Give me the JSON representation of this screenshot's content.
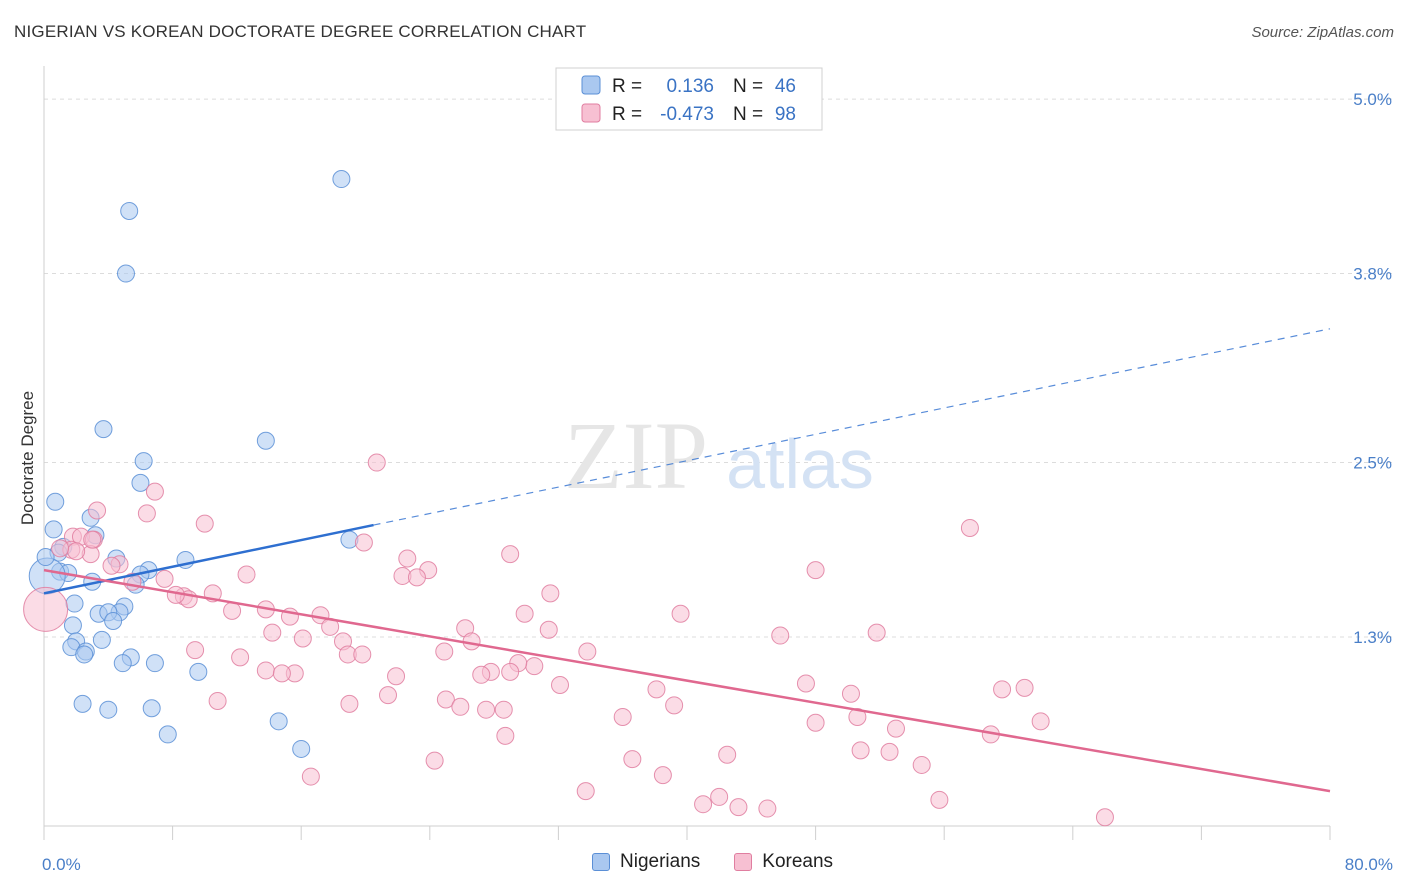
{
  "title": "NIGERIAN VS KOREAN DOCTORATE DEGREE CORRELATION CHART",
  "source": "Source: ZipAtlas.com",
  "watermark": {
    "zip": "ZIP",
    "atlas": "atlas"
  },
  "colors": {
    "nigerians_fill": "#aac8f0",
    "nigerians_stroke": "#5b8fd6",
    "nigerians_line": "#2e6fd0",
    "koreans_fill": "#f7c0d2",
    "koreans_stroke": "#e07ea0",
    "koreans_line": "#e0688f",
    "tick": "#4a7fc8",
    "grid": "#dcdcdc"
  },
  "legend": {
    "rows": [
      {
        "r_label": "R =",
        "r_value": "0.136",
        "n_label": "N =",
        "n_value": "46"
      },
      {
        "r_label": "R =",
        "r_value": "-0.473",
        "n_label": "N =",
        "n_value": "98"
      }
    ]
  },
  "bottom_legend": [
    "Nigerians",
    "Koreans"
  ],
  "chart_data": {
    "type": "scatter",
    "title": "NIGERIAN VS KOREAN DOCTORATE DEGREE CORRELATION CHART",
    "ylabel": "Doctorate Degree",
    "xlabel": "",
    "xlim": [
      0,
      80
    ],
    "ylim": [
      0,
      5.2
    ],
    "x_tick_labels": [
      "0.0%",
      "80.0%"
    ],
    "y_ticks": [
      1.3,
      2.5,
      3.8,
      5.0
    ],
    "y_tick_labels": [
      "1.3%",
      "2.5%",
      "3.8%",
      "5.0%"
    ],
    "grid": true,
    "legend_position": "top-center",
    "series": [
      {
        "name": "Nigerians",
        "R": 0.136,
        "N": 46,
        "trend": {
          "x0": 0,
          "y0": 1.6,
          "x1": 20.5,
          "y1": 2.07,
          "dashed_to_x": 80,
          "dashed_to_y": 3.42
        },
        "points": [
          [
            18.5,
            4.45
          ],
          [
            5.3,
            4.23
          ],
          [
            5.1,
            3.8
          ],
          [
            3.7,
            2.73
          ],
          [
            13.8,
            2.65
          ],
          [
            6.2,
            2.51
          ],
          [
            6.0,
            2.36
          ],
          [
            0.7,
            2.23
          ],
          [
            0.6,
            2.04
          ],
          [
            2.9,
            2.12
          ],
          [
            3.2,
            2.0
          ],
          [
            19.0,
            1.97
          ],
          [
            1.2,
            1.92
          ],
          [
            0.9,
            1.88
          ],
          [
            4.5,
            1.84
          ],
          [
            8.8,
            1.83
          ],
          [
            1.0,
            1.75
          ],
          [
            1.5,
            1.74
          ],
          [
            6.5,
            1.76
          ],
          [
            6.0,
            1.73
          ],
          [
            3.0,
            1.68
          ],
          [
            5.7,
            1.66
          ],
          [
            0.2,
            1.72
          ],
          [
            1.9,
            1.53
          ],
          [
            5.0,
            1.51
          ],
          [
            4.7,
            1.47
          ],
          [
            3.4,
            1.46
          ],
          [
            4.0,
            1.47
          ],
          [
            4.3,
            1.41
          ],
          [
            1.8,
            1.38
          ],
          [
            3.6,
            1.28
          ],
          [
            2.0,
            1.27
          ],
          [
            1.7,
            1.23
          ],
          [
            2.6,
            1.2
          ],
          [
            2.5,
            1.18
          ],
          [
            5.4,
            1.16
          ],
          [
            4.9,
            1.12
          ],
          [
            6.9,
            1.12
          ],
          [
            9.6,
            1.06
          ],
          [
            2.4,
            0.84
          ],
          [
            4.0,
            0.8
          ],
          [
            6.7,
            0.81
          ],
          [
            14.6,
            0.72
          ],
          [
            7.7,
            0.63
          ],
          [
            16.0,
            0.53
          ],
          [
            0.1,
            1.85
          ]
        ],
        "radii_large": [
          [
            0.2,
            1.72,
            18
          ]
        ]
      },
      {
        "name": "Koreans",
        "R": -0.473,
        "N": 98,
        "trend": {
          "x0": 0,
          "y0": 1.76,
          "x1": 80,
          "y1": 0.24
        },
        "points": [
          [
            20.7,
            2.5
          ],
          [
            6.9,
            2.3
          ],
          [
            3.3,
            2.17
          ],
          [
            6.4,
            2.15
          ],
          [
            10.0,
            2.08
          ],
          [
            57.6,
            2.05
          ],
          [
            1.8,
            1.99
          ],
          [
            2.3,
            1.99
          ],
          [
            3.1,
            1.97
          ],
          [
            19.9,
            1.95
          ],
          [
            1.7,
            1.9
          ],
          [
            2.9,
            1.87
          ],
          [
            2.0,
            1.89
          ],
          [
            29.0,
            1.87
          ],
          [
            22.6,
            1.84
          ],
          [
            4.7,
            1.8
          ],
          [
            4.2,
            1.79
          ],
          [
            23.9,
            1.76
          ],
          [
            48.0,
            1.76
          ],
          [
            12.6,
            1.73
          ],
          [
            22.3,
            1.72
          ],
          [
            23.2,
            1.71
          ],
          [
            7.5,
            1.7
          ],
          [
            5.5,
            1.68
          ],
          [
            31.5,
            1.6
          ],
          [
            10.5,
            1.6
          ],
          [
            8.7,
            1.58
          ],
          [
            9.0,
            1.56
          ],
          [
            8.2,
            1.59
          ],
          [
            13.8,
            1.49
          ],
          [
            11.7,
            1.48
          ],
          [
            17.2,
            1.45
          ],
          [
            29.9,
            1.46
          ],
          [
            39.6,
            1.46
          ],
          [
            15.3,
            1.44
          ],
          [
            17.8,
            1.37
          ],
          [
            26.2,
            1.36
          ],
          [
            31.4,
            1.35
          ],
          [
            14.2,
            1.33
          ],
          [
            51.8,
            1.33
          ],
          [
            45.8,
            1.31
          ],
          [
            16.1,
            1.29
          ],
          [
            18.6,
            1.27
          ],
          [
            26.6,
            1.27
          ],
          [
            24.9,
            1.2
          ],
          [
            33.8,
            1.2
          ],
          [
            9.4,
            1.21
          ],
          [
            18.9,
            1.18
          ],
          [
            19.8,
            1.18
          ],
          [
            12.2,
            1.16
          ],
          [
            30.5,
            1.1
          ],
          [
            29.5,
            1.12
          ],
          [
            27.8,
            1.06
          ],
          [
            29.0,
            1.06
          ],
          [
            32.1,
            0.97
          ],
          [
            13.8,
            1.07
          ],
          [
            15.6,
            1.05
          ],
          [
            14.8,
            1.05
          ],
          [
            21.9,
            1.03
          ],
          [
            27.2,
            1.04
          ],
          [
            47.4,
            0.98
          ],
          [
            59.6,
            0.94
          ],
          [
            61.0,
            0.95
          ],
          [
            38.1,
            0.94
          ],
          [
            50.2,
            0.91
          ],
          [
            21.4,
            0.9
          ],
          [
            19.0,
            0.84
          ],
          [
            25.0,
            0.87
          ],
          [
            10.8,
            0.86
          ],
          [
            25.9,
            0.82
          ],
          [
            39.2,
            0.83
          ],
          [
            28.6,
            0.8
          ],
          [
            27.5,
            0.8
          ],
          [
            36.0,
            0.75
          ],
          [
            50.6,
            0.75
          ],
          [
            48.0,
            0.71
          ],
          [
            62.0,
            0.72
          ],
          [
            53.0,
            0.67
          ],
          [
            58.9,
            0.63
          ],
          [
            28.7,
            0.62
          ],
          [
            42.5,
            0.49
          ],
          [
            50.8,
            0.52
          ],
          [
            52.6,
            0.51
          ],
          [
            36.6,
            0.46
          ],
          [
            24.3,
            0.45
          ],
          [
            54.6,
            0.42
          ],
          [
            16.6,
            0.34
          ],
          [
            38.5,
            0.35
          ],
          [
            33.7,
            0.24
          ],
          [
            42.0,
            0.2
          ],
          [
            55.7,
            0.18
          ],
          [
            41.0,
            0.15
          ],
          [
            43.2,
            0.13
          ],
          [
            66.0,
            0.06
          ],
          [
            45.0,
            0.12
          ],
          [
            0.1,
            1.49
          ],
          [
            1.0,
            1.91
          ],
          [
            3.0,
            1.97
          ]
        ],
        "radii_large": [
          [
            0.1,
            1.49,
            22
          ]
        ]
      }
    ]
  }
}
